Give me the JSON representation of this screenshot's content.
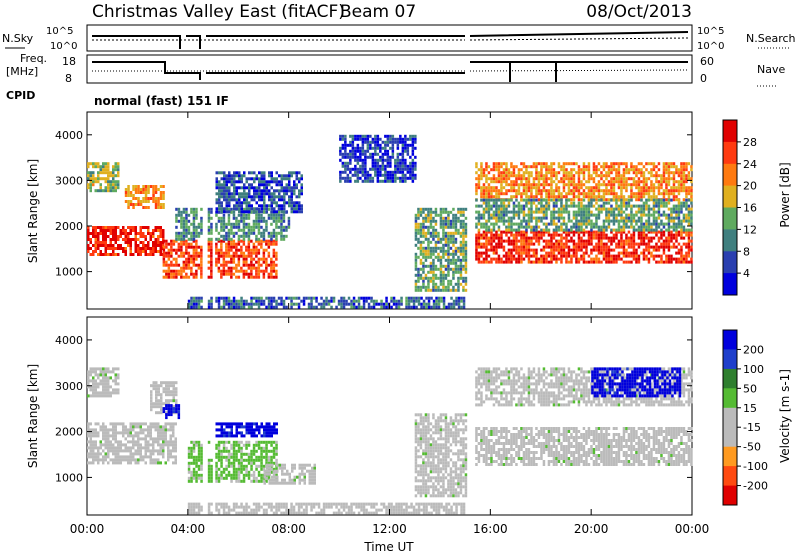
{
  "header": {
    "station": "Christmas Valley East (fitACF)",
    "beam": "Beam 07",
    "date": "08/Oct/2013"
  },
  "status_panels": {
    "left_labels": [
      "N.Sky",
      "Freq.",
      "[MHz]",
      "CPID"
    ],
    "right_labels": [
      "N.Search",
      "Nave"
    ],
    "noise_ticks": [
      "10^5",
      "10^0"
    ],
    "noise_ticks_right": [
      "10^5",
      "10^0"
    ],
    "freq_ticks": [
      "18",
      "8"
    ],
    "nave_ticks": [
      "60",
      "0"
    ],
    "cpid_text": "normal (fast) 151 IF"
  },
  "chart_data": [
    {
      "type": "heatmap",
      "name": "Power",
      "xlabel": "Time UT",
      "ylabel": "Slant Range [km]",
      "x_ticks": [
        "00:00",
        "04:00",
        "08:00",
        "12:00",
        "16:00",
        "20:00",
        "00:00"
      ],
      "xlim_hours": [
        0,
        24
      ],
      "y_ticks": [
        1000,
        2000,
        3000,
        4000
      ],
      "ylim": [
        180,
        4500
      ],
      "colorbar": {
        "label": "Power [dB]",
        "ticks": [
          "4",
          "8",
          "12",
          "16",
          "20",
          "24",
          "28"
        ],
        "range": [
          0,
          30
        ],
        "colors": [
          "#0000dd",
          "#2a3fb0",
          "#3f7f7f",
          "#5faa5f",
          "#e0b020",
          "#ff7a10",
          "#ff3a10",
          "#e00000"
        ]
      },
      "regions": [
        {
          "t": [
            0.0,
            3.0
          ],
          "r": [
            1400,
            2000
          ],
          "v": 27
        },
        {
          "t": [
            0.0,
            1.2
          ],
          "r": [
            2800,
            3400
          ],
          "v": 14
        },
        {
          "t": [
            1.5,
            3.0
          ],
          "r": [
            2400,
            2900
          ],
          "v": 20
        },
        {
          "t": [
            3.0,
            7.5
          ],
          "r": [
            900,
            1700
          ],
          "v": 24
        },
        {
          "t": [
            3.5,
            8.0
          ],
          "r": [
            1700,
            2400
          ],
          "v": 10
        },
        {
          "t": [
            5.0,
            8.5
          ],
          "r": [
            2300,
            3200
          ],
          "v": 6
        },
        {
          "t": [
            10.0,
            13.0
          ],
          "r": [
            3000,
            4000
          ],
          "v": 5
        },
        {
          "t": [
            13.0,
            15.0
          ],
          "r": [
            600,
            2400
          ],
          "v": 12
        },
        {
          "t": [
            4.0,
            15.0
          ],
          "r": [
            250,
            450
          ],
          "v": 7
        },
        {
          "t": [
            15.3,
            24.0
          ],
          "r": [
            1200,
            1900
          ],
          "v": 26
        },
        {
          "t": [
            15.3,
            24.0
          ],
          "r": [
            2600,
            3400
          ],
          "v": 20
        },
        {
          "t": [
            15.3,
            24.0
          ],
          "r": [
            1900,
            2600
          ],
          "v": 12
        }
      ],
      "gaps_hours": [
        [
          4.55,
          4.7
        ],
        [
          4.95,
          5.05
        ],
        [
          15.1,
          15.3
        ]
      ]
    },
    {
      "type": "heatmap",
      "name": "Velocity",
      "xlabel": "Time UT",
      "ylabel": "Slant Range [km]",
      "x_ticks": [
        "00:00",
        "04:00",
        "08:00",
        "12:00",
        "16:00",
        "20:00",
        "00:00"
      ],
      "xlim_hours": [
        0,
        24
      ],
      "y_ticks": [
        1000,
        2000,
        3000,
        4000
      ],
      "ylim": [
        180,
        4500
      ],
      "colorbar": {
        "label": "Velocity [m s-1]",
        "ticks": [
          "200",
          "100",
          "50",
          "15",
          "-15",
          "-50",
          "-100",
          "-200"
        ],
        "range": [
          -250,
          250
        ],
        "colors": [
          "#e00000",
          "#ff4a10",
          "#ff9a20",
          "#bbbbbb",
          "#bbbbbb",
          "#55bb33",
          "#2f7f2f",
          "#1f3fcc",
          "#0000dd"
        ]
      },
      "regions": [
        {
          "t": [
            0.0,
            3.5
          ],
          "r": [
            1300,
            2200
          ],
          "v": 0
        },
        {
          "t": [
            0.0,
            1.2
          ],
          "r": [
            2800,
            3400
          ],
          "v": 0
        },
        {
          "t": [
            2.5,
            3.5
          ],
          "r": [
            2400,
            3100
          ],
          "v": 0
        },
        {
          "t": [
            3.0,
            3.6
          ],
          "r": [
            2300,
            2600
          ],
          "v": 220
        },
        {
          "t": [
            4.0,
            7.5
          ],
          "r": [
            900,
            1800
          ],
          "v": 45
        },
        {
          "t": [
            5.0,
            7.5
          ],
          "r": [
            1900,
            2200
          ],
          "v": 220
        },
        {
          "t": [
            7.0,
            9.0
          ],
          "r": [
            900,
            1300
          ],
          "v": 0
        },
        {
          "t": [
            13.0,
            15.0
          ],
          "r": [
            600,
            2400
          ],
          "v": 0
        },
        {
          "t": [
            4.0,
            15.0
          ],
          "r": [
            250,
            450
          ],
          "v": -30
        },
        {
          "t": [
            15.3,
            24.0
          ],
          "r": [
            1300,
            2100
          ],
          "v": 0
        },
        {
          "t": [
            15.3,
            24.0
          ],
          "r": [
            2600,
            3400
          ],
          "v": 0
        },
        {
          "t": [
            20.0,
            23.5
          ],
          "r": [
            2800,
            3400
          ],
          "v": 220
        }
      ],
      "gaps_hours": [
        [
          4.55,
          4.7
        ],
        [
          4.95,
          5.05
        ],
        [
          15.1,
          15.3
        ]
      ]
    }
  ]
}
